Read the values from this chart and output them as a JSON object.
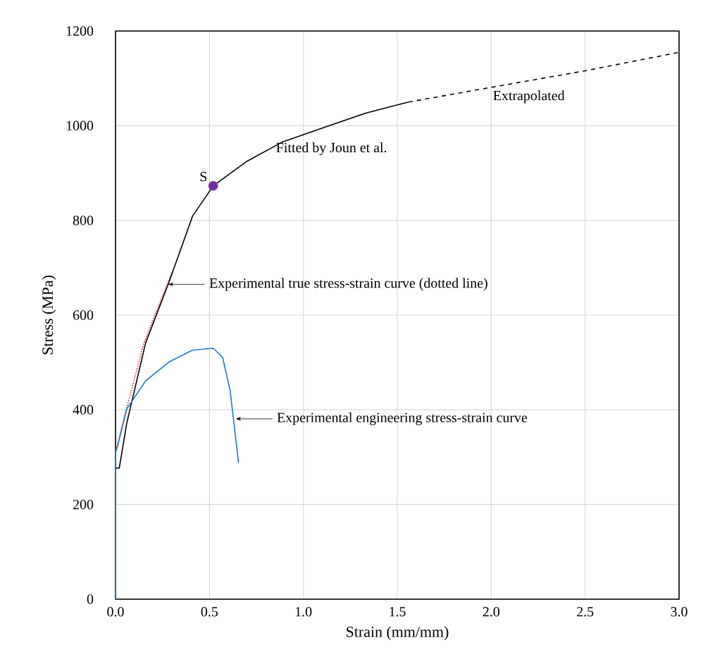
{
  "chart_data": {
    "type": "line",
    "xlabel": "Strain (mm/mm)",
    "ylabel": "Stress (MPa)",
    "xlim": [
      0,
      3
    ],
    "ylim": [
      0,
      1200
    ],
    "xticks": [
      {
        "value": 0,
        "label": "0.0"
      },
      {
        "value": 0.5,
        "label": "0.5"
      },
      {
        "value": 1,
        "label": "1.0"
      },
      {
        "value": 1.5,
        "label": "1.5"
      },
      {
        "value": 2,
        "label": "2.0"
      },
      {
        "value": 2.5,
        "label": "2.5"
      },
      {
        "value": 3,
        "label": "3.0"
      }
    ],
    "yticks": [
      0,
      200,
      400,
      600,
      800,
      1000,
      1200
    ],
    "grid": true,
    "series": [
      {
        "color": "#ff2020",
        "line_style": "dotted",
        "x": [
          0,
          0.05,
          0.15,
          0.3
        ],
        "values": [
          310,
          390,
          540,
          690
        ]
      },
      {
        "color": "#000000",
        "line_style": "solid",
        "x": [
          0,
          0.02,
          0.06,
          0.16,
          0.285,
          0.41,
          0.52,
          0.7,
          0.885,
          1.1,
          1.335,
          1.56
        ],
        "values": [
          277,
          277,
          372,
          541,
          670,
          809,
          873,
          925,
          965,
          995,
          1027,
          1050
        ]
      },
      {
        "color": "#000000",
        "line_style": "dashed",
        "x": [
          1.56,
          2.0,
          2.5,
          3.0
        ],
        "values": [
          1050,
          1081,
          1116,
          1155
        ]
      },
      {
        "color": "#1f78c8",
        "line_style": "solid",
        "x": [
          0,
          0,
          0.01,
          0.06,
          0.16,
          0.285,
          0.41,
          0.52,
          0.57,
          0.61,
          0.655
        ],
        "values": [
          0,
          310,
          322,
          402,
          461,
          501,
          526,
          530,
          511,
          441,
          288
        ]
      },
      {
        "type": "scatter",
        "marker": "circle",
        "color": "#7030a0",
        "x": [
          0.52
        ],
        "values": [
          873
        ]
      }
    ],
    "annotations": [
      {
        "text": "S",
        "x": 0.52,
        "y": 873
      },
      {
        "text": "Fitted by Joun et al.",
        "x": 1.15,
        "y": 995
      },
      {
        "text": "Extrapolated",
        "x": 2.2,
        "y": 1090
      },
      {
        "text": "Experimental true stress-strain curve (dotted line)",
        "x": 0.28,
        "y": 665
      },
      {
        "text": "Experimental engineering stress-strain curve",
        "x": 0.64,
        "y": 381
      }
    ]
  }
}
